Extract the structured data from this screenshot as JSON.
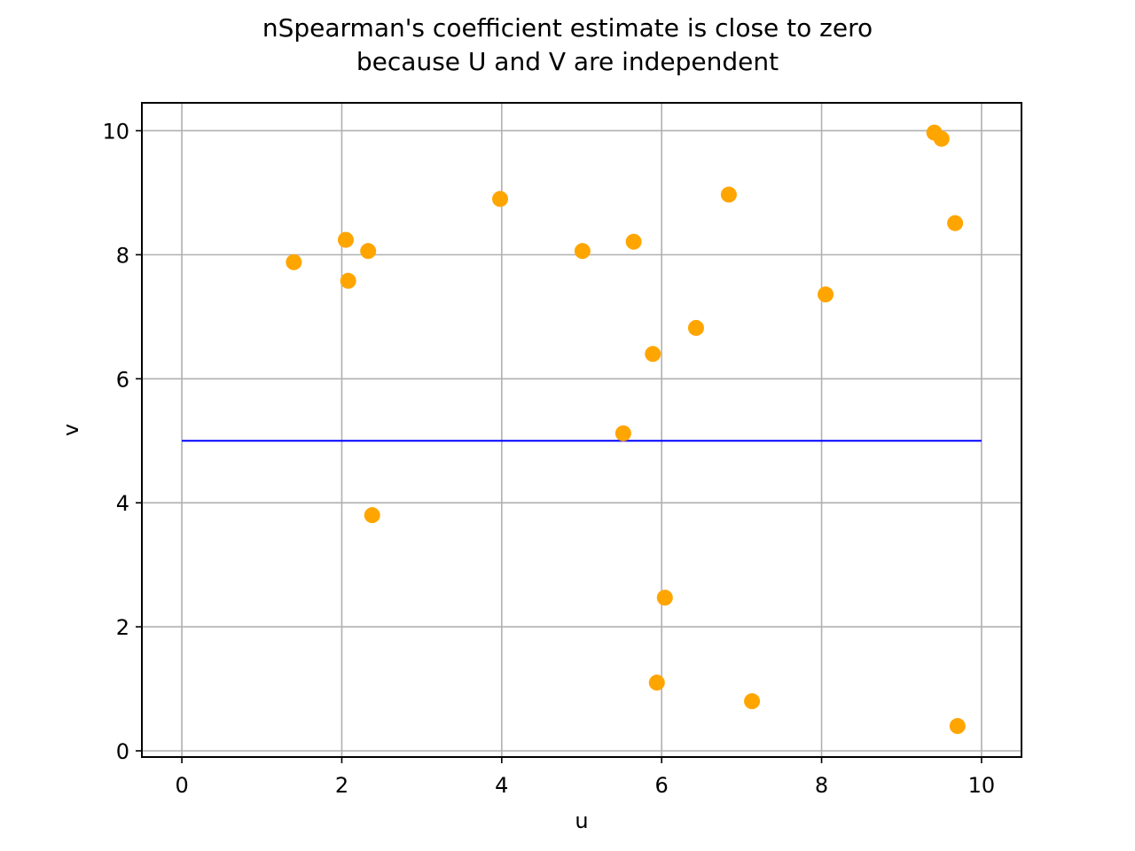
{
  "chart_data": {
    "type": "scatter",
    "title_lines": [
      "nSpearman's coefficient estimate is close to zero",
      "because U and V are independent"
    ],
    "xlabel": "u",
    "ylabel": "v",
    "xlim": [
      -0.5,
      10.5
    ],
    "ylim": [
      -0.1,
      10.45
    ],
    "xticks": [
      0,
      2,
      4,
      6,
      8,
      10
    ],
    "yticks": [
      0,
      2,
      4,
      6,
      8,
      10
    ],
    "grid": true,
    "series": [
      {
        "marker_color": "#ffa500",
        "points": [
          {
            "x": 1.4,
            "y": 7.88
          },
          {
            "x": 2.05,
            "y": 8.24
          },
          {
            "x": 2.08,
            "y": 7.58
          },
          {
            "x": 2.33,
            "y": 8.06
          },
          {
            "x": 2.38,
            "y": 3.8
          },
          {
            "x": 3.98,
            "y": 8.9
          },
          {
            "x": 5.01,
            "y": 8.06
          },
          {
            "x": 5.52,
            "y": 5.12
          },
          {
            "x": 5.65,
            "y": 8.21
          },
          {
            "x": 5.89,
            "y": 6.4
          },
          {
            "x": 5.94,
            "y": 1.1
          },
          {
            "x": 6.04,
            "y": 2.47
          },
          {
            "x": 6.43,
            "y": 6.82
          },
          {
            "x": 6.84,
            "y": 8.97
          },
          {
            "x": 7.13,
            "y": 0.8
          },
          {
            "x": 8.05,
            "y": 7.36
          },
          {
            "x": 9.41,
            "y": 9.97
          },
          {
            "x": 9.5,
            "y": 9.87
          },
          {
            "x": 9.67,
            "y": 8.51
          },
          {
            "x": 9.7,
            "y": 0.4
          }
        ]
      }
    ],
    "reference_line": {
      "color": "#0000ff",
      "x": [
        0,
        10
      ],
      "y": [
        5,
        5
      ]
    }
  }
}
